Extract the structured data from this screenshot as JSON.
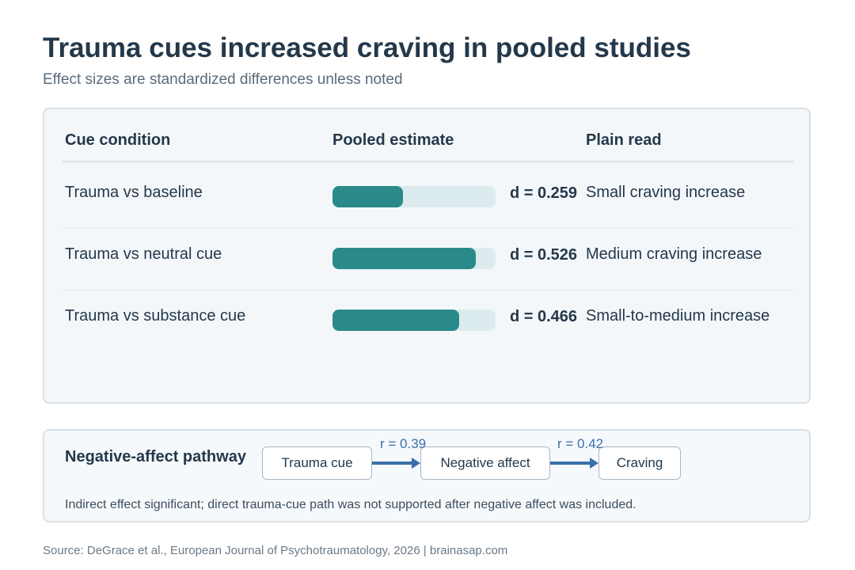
{
  "title": "Trauma cues increased craving in pooled studies",
  "subtitle": "Effect sizes are standardized differences unless noted",
  "table": {
    "headers": [
      "Cue condition",
      "Pooled estimate",
      "Plain read"
    ]
  },
  "chart_data": {
    "type": "bar",
    "orientation": "horizontal",
    "categories": [
      "Trauma vs baseline",
      "Trauma vs neutral cue",
      "Trauma vs substance cue"
    ],
    "values": [
      0.259,
      0.526,
      0.466
    ],
    "value_labels": [
      "d = 0.259",
      "d = 0.526",
      "d = 0.466"
    ],
    "plain_read": [
      "Small craving increase",
      "Medium craving increase",
      "Small-to-medium increase"
    ],
    "xlim": [
      0,
      0.6
    ],
    "colors": {
      "bar": "#2a8a8a",
      "track": "#dcebee"
    }
  },
  "pathway": {
    "title": "Negative-affect pathway",
    "nodes": [
      "Trauma cue",
      "Negative affect",
      "Craving"
    ],
    "edges": [
      "r = 0.39",
      "r = 0.42"
    ],
    "note": "Indirect effect significant; direct trauma-cue path was not supported after negative affect was included."
  },
  "source": "Source: DeGrace et al., European Journal of Psychotraumatology, 2026 | brainasap.com"
}
